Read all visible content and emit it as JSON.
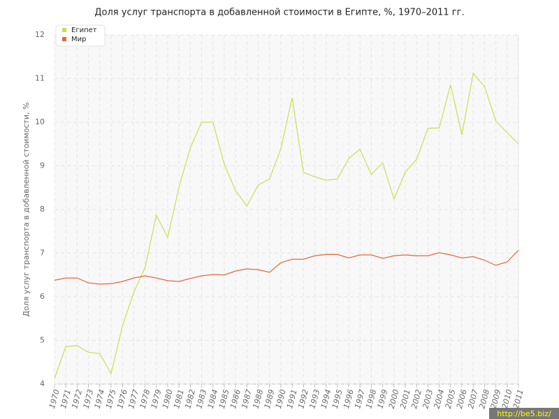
{
  "chart_data": {
    "type": "line",
    "title": "Доля услуг транспорта в добавленной стоимости в Египте, %, 1970–2011 гг.",
    "y_label": "Доля услуг транспорта в добавленной стоимости, %",
    "categories": [
      "1970",
      "1971",
      "1972",
      "1973",
      "1974",
      "1975",
      "1976",
      "1977",
      "1978",
      "1979",
      "1980",
      "1981",
      "1982",
      "1983",
      "1984",
      "1985",
      "1986",
      "1987",
      "1988",
      "1989",
      "1990",
      "1991",
      "1992",
      "1993",
      "1994",
      "1995",
      "1996",
      "1997",
      "1998",
      "1999",
      "2000",
      "2001",
      "2002",
      "2003",
      "2004",
      "2005",
      "2006",
      "2007",
      "2008",
      "2009",
      "2010",
      "2011"
    ],
    "series": [
      {
        "name": "Египет",
        "color": "#c8df52",
        "values": [
          4.13,
          4.86,
          4.88,
          4.73,
          4.7,
          4.24,
          5.33,
          6.1,
          6.67,
          7.87,
          7.36,
          8.51,
          9.41,
          10.0,
          10.0,
          9.04,
          8.43,
          8.08,
          8.56,
          8.7,
          9.39,
          10.56,
          8.85,
          8.75,
          8.67,
          8.7,
          9.17,
          9.38,
          8.8,
          9.07,
          8.24,
          8.86,
          9.15,
          9.86,
          9.87,
          10.86,
          9.71,
          11.12,
          10.82,
          10.03,
          9.76,
          9.5
        ]
      },
      {
        "name": "Мир",
        "color": "#e2683c",
        "values": [
          6.38,
          6.43,
          6.43,
          6.32,
          6.29,
          6.3,
          6.35,
          6.43,
          6.48,
          6.43,
          6.37,
          6.35,
          6.42,
          6.48,
          6.51,
          6.5,
          6.59,
          6.64,
          6.62,
          6.56,
          6.78,
          6.86,
          6.86,
          6.94,
          6.97,
          6.97,
          6.89,
          6.96,
          6.96,
          6.88,
          6.94,
          6.96,
          6.94,
          6.94,
          7.01,
          6.96,
          6.89,
          6.92,
          6.84,
          6.72,
          6.8,
          7.07
        ]
      }
    ],
    "ylim": [
      4,
      12
    ],
    "yticks": [
      4,
      5,
      6,
      7,
      8,
      9,
      10,
      11,
      12
    ],
    "grid": true,
    "legend": "top-left"
  },
  "watermark": "http://be5.biz/"
}
